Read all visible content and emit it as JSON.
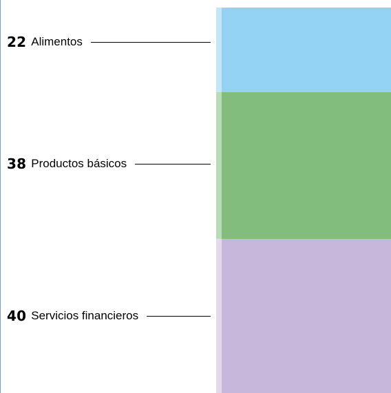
{
  "chart_data": {
    "type": "bar",
    "orientation": "vertical-stacked",
    "categories": [
      "Alimentos",
      "Productos básicos",
      "Servicios financieros"
    ],
    "values": [
      22,
      38,
      40
    ],
    "value_labels": [
      "22",
      "38",
      "40"
    ],
    "colors": [
      "#93d2f2",
      "#82bd7e",
      "#c7b7da"
    ],
    "edge_colors": [
      "#c3e7f9",
      "#b9dbb6",
      "#e3dbec"
    ]
  }
}
